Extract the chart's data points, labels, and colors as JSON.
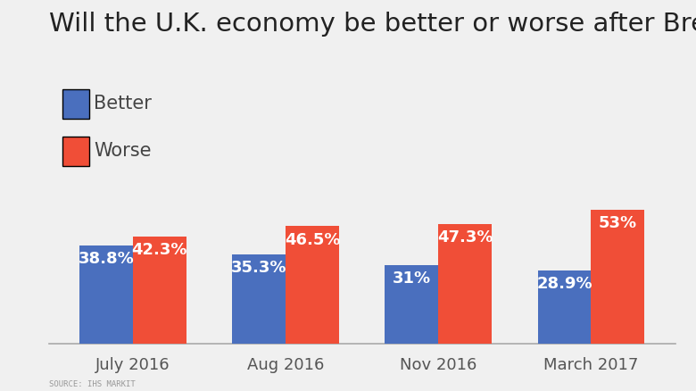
{
  "title": "Will the U.K. economy be better or worse after Brexit?",
  "categories": [
    "July 2016",
    "Aug 2016",
    "Nov 2016",
    "March 2017"
  ],
  "better_values": [
    38.8,
    35.3,
    31.0,
    28.9
  ],
  "worse_values": [
    42.3,
    46.5,
    47.3,
    53.0
  ],
  "better_labels": [
    "38.8%",
    "35.3%",
    "31%",
    "28.9%"
  ],
  "worse_labels": [
    "42.3%",
    "46.5%",
    "47.3%",
    "53%"
  ],
  "better_color": "#4a6fbe",
  "worse_color": "#f04e37",
  "background_color": "#f0f0f0",
  "title_fontsize": 21,
  "label_fontsize": 13,
  "legend_fontsize": 15,
  "source_text": "SOURCE: IHS MARKIT",
  "bar_width": 0.35,
  "ylim": [
    0,
    65
  ]
}
